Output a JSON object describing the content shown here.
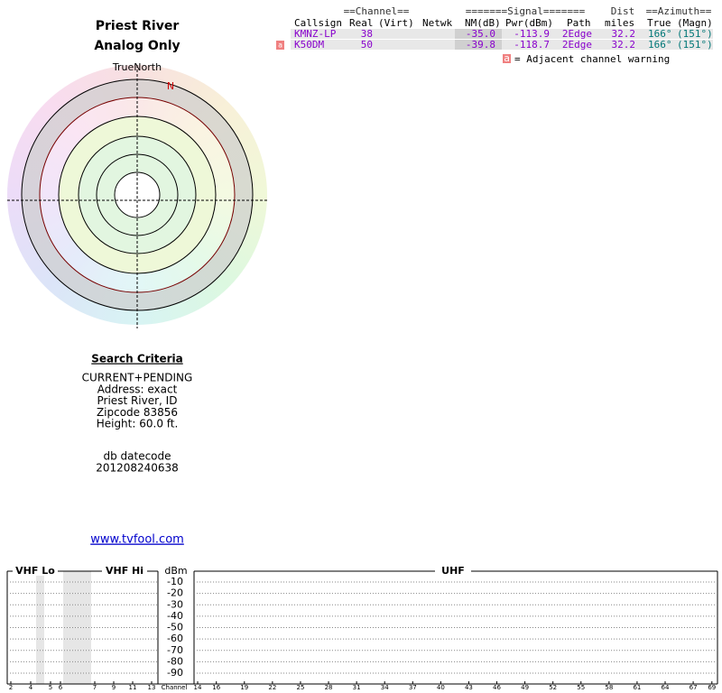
{
  "header": {
    "title": "Priest River",
    "subtitle": "Analog Only"
  },
  "compass": {
    "north_label": "TrueNorth",
    "n_marker": "N"
  },
  "table": {
    "groups": [
      "==Channel==",
      "=======Signal=======",
      "Dist",
      "==Azimuth=="
    ],
    "columns": [
      "Callsign",
      "Real",
      "(Virt)",
      "Netwk",
      "NM(dB)",
      "Pwr(dBm)",
      "Path",
      "miles",
      "True",
      "(Magn)"
    ],
    "rows": [
      {
        "callsign": "KMNZ-LP",
        "real": "38",
        "nm": "-35.0",
        "pwr": "-113.9",
        "path": "2Edge",
        "miles": "32.2",
        "true_az": "166°",
        "magn": "(151°)"
      },
      {
        "flag": "a",
        "callsign": "K50DM",
        "real": "50",
        "nm": "-39.8",
        "pwr": "-118.7",
        "path": "2Edge",
        "miles": "32.2",
        "true_az": "166°",
        "magn": "(151°)"
      }
    ],
    "legend": {
      "icon": "a",
      "text": "= Adjacent channel warning"
    }
  },
  "search": {
    "title": "Search Criteria",
    "lines": [
      "CURRENT+PENDING",
      "Address: exact",
      "Priest River, ID",
      "Zipcode 83856",
      "Height: 60.0 ft."
    ],
    "db_label": "db datecode",
    "db_code": "201208240638"
  },
  "link": "www.tvfool.com",
  "spectrum": {
    "vhf_lo": "VHF Lo",
    "vhf_hi": "VHF Hi",
    "uhf": "UHF",
    "y_label": "dBm",
    "yticks": [
      -10,
      -20,
      -30,
      -40,
      -50,
      -60,
      -70,
      -80,
      -90
    ],
    "channels_lo": [
      2,
      4,
      5,
      6
    ],
    "channels_hi": [
      7,
      9,
      11,
      13
    ],
    "channels_uhf": [
      14,
      16,
      19,
      22,
      25,
      28,
      31,
      34,
      37,
      40,
      43,
      46,
      49,
      52,
      55,
      58,
      61,
      64,
      67,
      69
    ],
    "x_label": "Channel"
  }
}
